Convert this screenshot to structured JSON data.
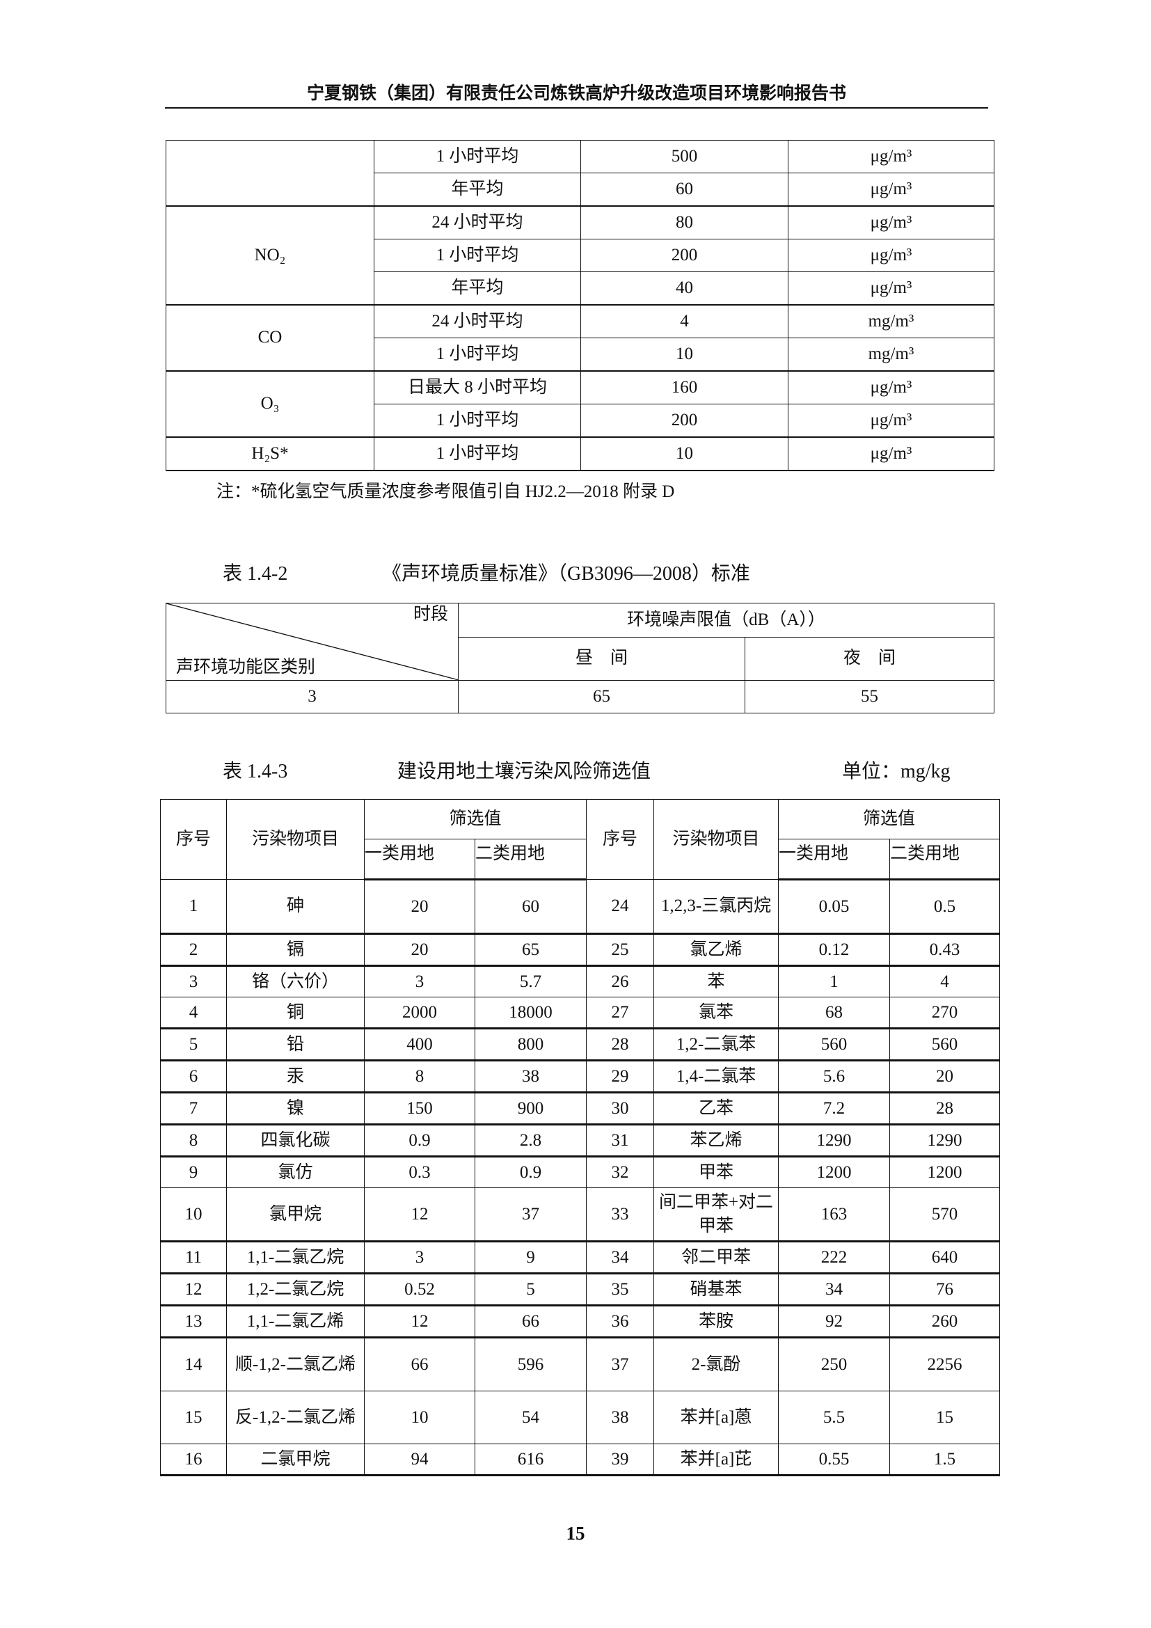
{
  "header": {
    "title": "宁夏钢铁（集团）有限责任公司炼铁高炉升级改造项目环境影响报告书"
  },
  "table1": {
    "groups": [
      {
        "pollutant": "",
        "rows": [
          [
            "1 小时平均",
            "500",
            "μg/m³"
          ],
          [
            "年平均",
            "60",
            "μg/m³"
          ]
        ]
      },
      {
        "pollutant": "NO₂",
        "rows": [
          [
            "24 小时平均",
            "80",
            "μg/m³"
          ],
          [
            "1 小时平均",
            "200",
            "μg/m³"
          ],
          [
            "年平均",
            "40",
            "μg/m³"
          ]
        ]
      },
      {
        "pollutant": "CO",
        "rows": [
          [
            "24 小时平均",
            "4",
            "mg/m³"
          ],
          [
            "1 小时平均",
            "10",
            "mg/m³"
          ]
        ]
      },
      {
        "pollutant": "O₃",
        "rows": [
          [
            "日最大 8 小时平均",
            "160",
            "μg/m³"
          ],
          [
            "1 小时平均",
            "200",
            "μg/m³"
          ]
        ]
      },
      {
        "pollutant": "H₂S*",
        "rows": [
          [
            "1 小时平均",
            "10",
            "μg/m³"
          ]
        ]
      }
    ],
    "note": "注：*硫化氢空气质量浓度参考限值引自 HJ2.2—2018 附录 D"
  },
  "table2": {
    "caption": "表 1.4-2",
    "title": "《声环境质量标准》（GB3096—2008）标准",
    "diag_top": "时段",
    "diag_bottom": "声环境功能区类别",
    "group_header": "环境噪声限值（dB（A））",
    "day": "昼　间",
    "night": "夜　间",
    "row": [
      "3",
      "65",
      "55"
    ]
  },
  "table3": {
    "caption": "表 1.4-3",
    "title": "建设用地土壤污染风险筛选值",
    "unit": "单位：mg/kg",
    "headers": {
      "no": "序号",
      "item": "污染物项目",
      "screen": "筛选值",
      "class1": "一类用地",
      "class2": "二类用地"
    },
    "rows": [
      [
        [
          "1",
          "砷",
          "20",
          "60"
        ],
        [
          "24",
          "1,2,3-三氯丙烷",
          "0.05",
          "0.5"
        ]
      ],
      [
        [
          "2",
          "镉",
          "20",
          "65"
        ],
        [
          "25",
          "氯乙烯",
          "0.12",
          "0.43"
        ]
      ],
      [
        [
          "3",
          "铬（六价）",
          "3",
          "5.7"
        ],
        [
          "26",
          "苯",
          "1",
          "4"
        ]
      ],
      [
        [
          "4",
          "铜",
          "2000",
          "18000"
        ],
        [
          "27",
          "氯苯",
          "68",
          "270"
        ]
      ],
      [
        [
          "5",
          "铅",
          "400",
          "800"
        ],
        [
          "28",
          "1,2-二氯苯",
          "560",
          "560"
        ]
      ],
      [
        [
          "6",
          "汞",
          "8",
          "38"
        ],
        [
          "29",
          "1,4-二氯苯",
          "5.6",
          "20"
        ]
      ],
      [
        [
          "7",
          "镍",
          "150",
          "900"
        ],
        [
          "30",
          "乙苯",
          "7.2",
          "28"
        ]
      ],
      [
        [
          "8",
          "四氯化碳",
          "0.9",
          "2.8"
        ],
        [
          "31",
          "苯乙烯",
          "1290",
          "1290"
        ]
      ],
      [
        [
          "9",
          "氯仿",
          "0.3",
          "0.9"
        ],
        [
          "32",
          "甲苯",
          "1200",
          "1200"
        ]
      ],
      [
        [
          "10",
          "氯甲烷",
          "12",
          "37"
        ],
        [
          "33",
          "间二甲苯+对二甲苯",
          "163",
          "570"
        ]
      ],
      [
        [
          "11",
          "1,1-二氯乙烷",
          "3",
          "9"
        ],
        [
          "34",
          "邻二甲苯",
          "222",
          "640"
        ]
      ],
      [
        [
          "12",
          "1,2-二氯乙烷",
          "0.52",
          "5"
        ],
        [
          "35",
          "硝基苯",
          "34",
          "76"
        ]
      ],
      [
        [
          "13",
          "1,1-二氯乙烯",
          "12",
          "66"
        ],
        [
          "36",
          "苯胺",
          "92",
          "260"
        ]
      ],
      [
        [
          "14",
          "顺-1,2-二氯乙烯",
          "66",
          "596"
        ],
        [
          "37",
          "2-氯酚",
          "250",
          "2256"
        ]
      ],
      [
        [
          "15",
          "反-1,2-二氯乙烯",
          "10",
          "54"
        ],
        [
          "38",
          "苯并[a]蒽",
          "5.5",
          "15"
        ]
      ],
      [
        [
          "16",
          "二氯甲烷",
          "94",
          "616"
        ],
        [
          "39",
          "苯并[a]芘",
          "0.55",
          "1.5"
        ]
      ]
    ]
  },
  "footer": {
    "page_number": "15"
  }
}
